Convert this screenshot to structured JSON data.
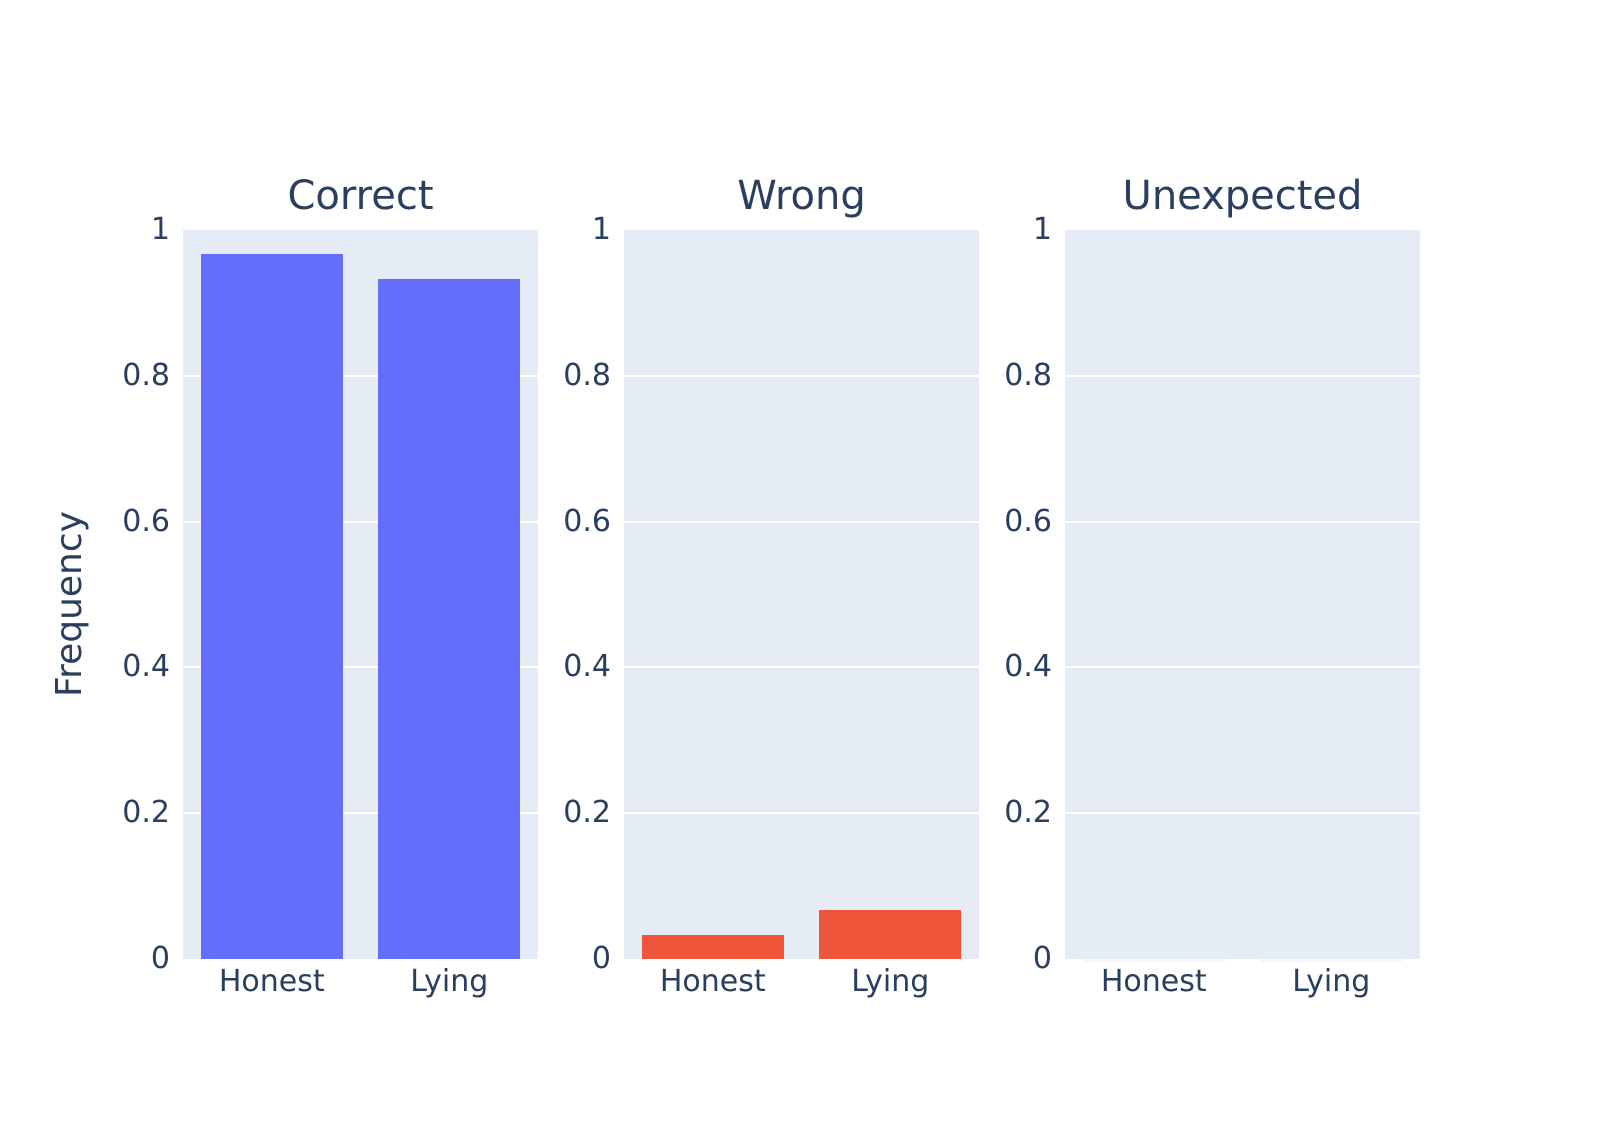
{
  "chart_data": {
    "type": "bar",
    "layout": "1-row-3-column-subplots",
    "categories": [
      "Honest",
      "Lying"
    ],
    "subplots": [
      {
        "title": "Correct",
        "values": [
          0.967,
          0.933
        ],
        "bar_color": "#636EFA"
      },
      {
        "title": "Wrong",
        "values": [
          0.033,
          0.067
        ],
        "bar_color": "#EF553B"
      },
      {
        "title": "Unexpected",
        "values": [
          0,
          0
        ],
        "bar_color": "#636EFA"
      }
    ],
    "ylabel": "Frequency",
    "xlabel": "",
    "ylim": [
      0,
      1
    ],
    "yticks": [
      "0",
      "0.2",
      "0.4",
      "0.6",
      "0.8",
      "1"
    ],
    "grid": true,
    "legend": "none",
    "colors": {
      "paper_background": "#ffffff",
      "plot_background": "#E5ECF6",
      "grid": "#ffffff",
      "text": "#2a3f5f",
      "zero_bar_hairline": "#f3f6fb"
    }
  }
}
